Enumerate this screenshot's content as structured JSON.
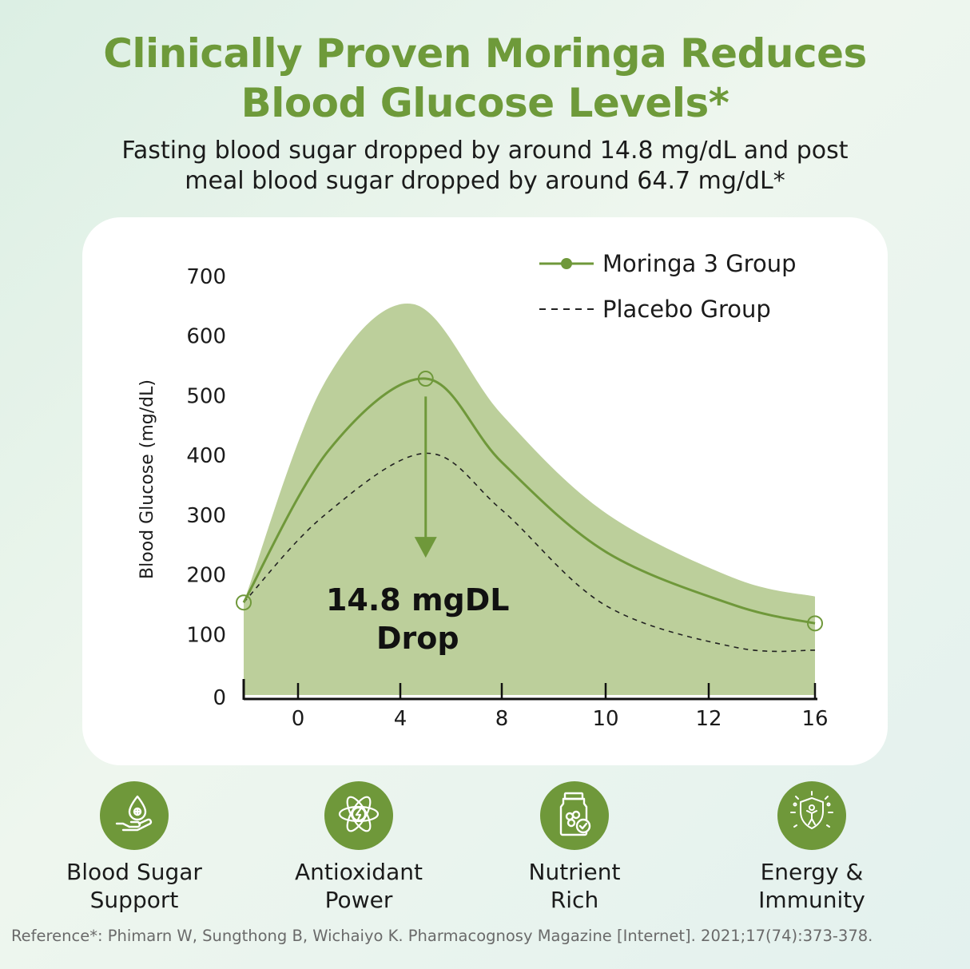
{
  "headline": {
    "line1": "Clinically Proven Moringa Reduces",
    "line2": "Blood Glucose Levels*"
  },
  "subheadline": {
    "line1": "Fasting blood sugar dropped by around 14.8 mg/dL and post",
    "line2": "meal blood sugar dropped by around 64.7 mg/dL*"
  },
  "colors": {
    "accent": "#6e9a3a",
    "band": "#bccf9b",
    "moringa_line": "#6f983a",
    "placebo_line": "#222222",
    "badge": "#6f983a"
  },
  "chart_data": {
    "type": "line",
    "ylabel": "Blood Glucose (mg/dL)",
    "xlabel": "",
    "ylim": [
      0,
      700
    ],
    "y_ticks": [
      "0",
      "100",
      "200",
      "300",
      "400",
      "500",
      "600",
      "700"
    ],
    "x_ticks": [
      "0",
      "4",
      "8",
      "10",
      "12",
      "16"
    ],
    "grid": false,
    "legend_position": "top-right",
    "series": [
      {
        "name": "Moringa 3 Group",
        "style": "solid-with-markers",
        "points": [
          [
            -2,
            155
          ],
          [
            5,
            530
          ],
          [
            16,
            120
          ]
        ]
      },
      {
        "name": "Placebo Group",
        "style": "dashed",
        "points": [
          [
            -2,
            155
          ],
          [
            5,
            405
          ],
          [
            10,
            150
          ],
          [
            13,
            80
          ],
          [
            16,
            75
          ]
        ]
      }
    ],
    "band": {
      "upper_peak": 655,
      "upper_end": 165,
      "lower": 0
    },
    "annotation": {
      "line1": "14.8 mgDL",
      "line2": "Drop",
      "arrow_from": 500,
      "arrow_to": 230
    }
  },
  "features": [
    {
      "icon": "blood-drop-hand-icon",
      "line1": "Blood Sugar",
      "line2": "Support"
    },
    {
      "icon": "atom-energy-icon",
      "line1": "Antioxidant",
      "line2": "Power"
    },
    {
      "icon": "supplement-bottle-icon",
      "line1": "Nutrient",
      "line2": "Rich"
    },
    {
      "icon": "shield-figure-icon",
      "line1": "Energy &",
      "line2": "Immunity"
    }
  ],
  "reference": "Reference*: Phimarn W, Sungthong B, Wichaiyo K. Pharmacognosy Magazine [Internet]. 2021;17(74):373-378."
}
